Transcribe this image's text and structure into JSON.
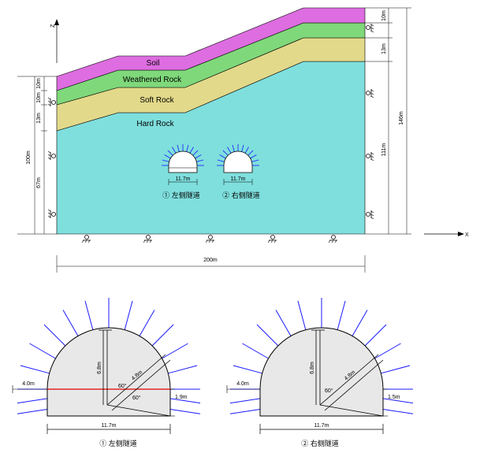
{
  "layers": {
    "soil": "Soil",
    "weathered": "Weathered Rock",
    "soft": "Soft Rock",
    "hard": "Hard Rock"
  },
  "axes": {
    "z": "Z",
    "x": "X"
  },
  "dims": {
    "left_total": "100m",
    "left_soil": "10m",
    "left_weathered": "10m",
    "left_soft": "13m",
    "left_hard": "67m",
    "right_soil": "10m",
    "right_weathered": "13m",
    "right_total": "146m",
    "right_hard": "111m",
    "width": "200m",
    "tunnel_width_small": "11.7m"
  },
  "tunnels": {
    "left_label": "① 左侧隧道",
    "right_label": "② 右侧隧道"
  },
  "detail": {
    "height": "6.8m",
    "radius_left": "4.8m",
    "radius_right": "4.8m",
    "angle_left": "60°",
    "angle_right": "60°",
    "angle_bottom": "60°",
    "offset": "4.0m",
    "side_left": "1.9m",
    "side_right": "1.5m",
    "width": "11.7m",
    "left_caption": "① 左侧隧道",
    "right_caption": "② 右侧隧道"
  },
  "colors": {
    "soil": "#dd6de0",
    "weathered": "#7fd87a",
    "soft": "#e2d98a",
    "hard": "#7fdfdd",
    "bolt": "#1a1aff",
    "cut_line": "#e00000",
    "tunnel_fill": "#e8e8e8"
  }
}
